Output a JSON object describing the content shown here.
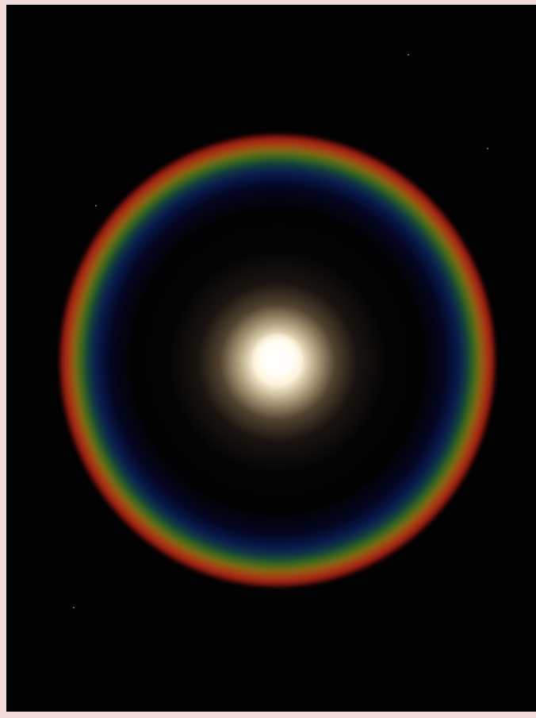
{
  "scene": {
    "subject": "halo-ring",
    "colors": {
      "sky": "#020202",
      "border": "#f3dada",
      "ring_outer": "#b03a1c",
      "ring_middle": "#5e7d1e",
      "ring_inner": "#0d1f5c",
      "light_center": "#fffdf5"
    }
  }
}
